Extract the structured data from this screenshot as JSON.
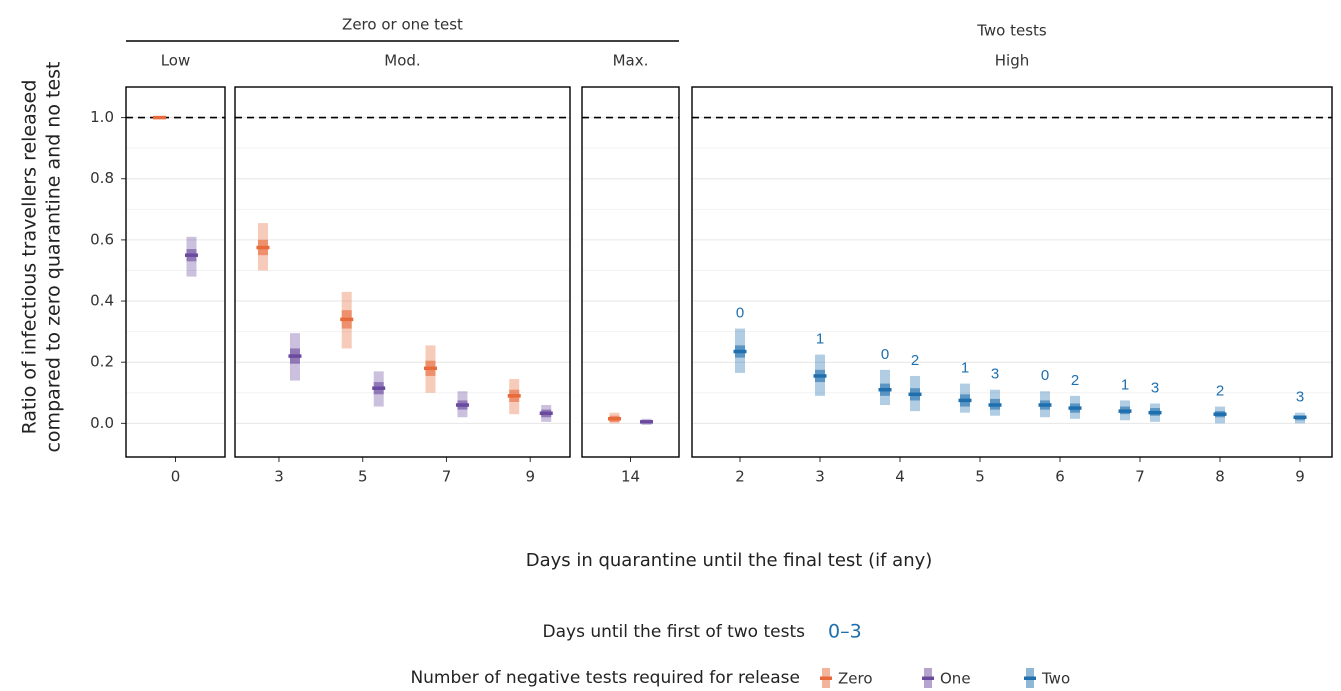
{
  "y_label": [
    "Ratio of infectious travellers released",
    "compared to zero quarantine and no test"
  ],
  "x_label": "Days in quarantine until the final test (if any)",
  "group_titles": [
    "Zero or one test",
    "Two tests"
  ],
  "ylim": [
    -0.11,
    1.1
  ],
  "yticks": [
    {
      "value": 0,
      "label": "0.0"
    },
    0.2,
    0.4,
    0.6,
    0.8,
    {
      "value": 1,
      "label": "1.0"
    }
  ],
  "yminor": [
    0.1,
    0.3,
    0.5,
    0.7,
    0.9
  ],
  "hline": 1,
  "first_test_legend": {
    "title": "Days until the first of two tests",
    "label": "0–3",
    "color": "#1f6fae"
  },
  "legend": {
    "title": "Number of negative tests required for release",
    "entries": [
      {
        "name": "Zero",
        "color": "#e8693a"
      },
      {
        "name": "One",
        "color": "#6a4a9e"
      },
      {
        "name": "Two",
        "color": "#1f6fae"
      }
    ]
  },
  "chart_data": [
    {
      "type": "interval",
      "title": "Low",
      "xlim": [
        -0.6,
        0.6
      ],
      "xticks": [
        0
      ],
      "series": [
        {
          "color": "#e8693a",
          "x": [
            0
          ],
          "values": [
            1.0
          ],
          "low50": [
            0.998
          ],
          "high50": [
            1.0
          ],
          "low95": [
            0.995
          ],
          "high95": [
            1.0
          ]
        },
        {
          "color": "#6a4a9e",
          "x": [
            0
          ],
          "values": [
            0.55
          ],
          "low50": [
            0.53
          ],
          "high50": [
            0.57
          ],
          "low95": [
            0.48
          ],
          "high95": [
            0.61
          ]
        }
      ]
    },
    {
      "type": "interval",
      "title": "Mod.",
      "xlim": [
        1.95,
        9.95
      ],
      "xticks": [
        3,
        5,
        7,
        9
      ],
      "series": [
        {
          "color": "#e8693a",
          "x": [
            3,
            5,
            7,
            9
          ],
          "values": [
            0.575,
            0.34,
            0.18,
            0.09
          ],
          "low50": [
            0.55,
            0.31,
            0.155,
            0.07
          ],
          "high50": [
            0.6,
            0.37,
            0.205,
            0.11
          ],
          "low95": [
            0.5,
            0.245,
            0.1,
            0.03
          ],
          "high95": [
            0.655,
            0.43,
            0.255,
            0.145
          ]
        },
        {
          "color": "#6a4a9e",
          "x": [
            3,
            5,
            7,
            9
          ],
          "values": [
            0.22,
            0.115,
            0.06,
            0.033
          ],
          "low50": [
            0.195,
            0.095,
            0.045,
            0.02
          ],
          "high50": [
            0.245,
            0.135,
            0.075,
            0.045
          ],
          "low95": [
            0.14,
            0.055,
            0.02,
            0.005
          ],
          "high95": [
            0.295,
            0.17,
            0.105,
            0.06
          ]
        }
      ]
    },
    {
      "type": "interval",
      "title": "Max.",
      "xlim": [
        13.4,
        14.6
      ],
      "xticks": [
        14
      ],
      "series": [
        {
          "color": "#e8693a",
          "x": [
            14
          ],
          "values": [
            0.015
          ],
          "low50": [
            0.005
          ],
          "high50": [
            0.025
          ],
          "low95": [
            0.0
          ],
          "high95": [
            0.035
          ]
        },
        {
          "color": "#6a4a9e",
          "x": [
            14
          ],
          "values": [
            0.005
          ],
          "low50": [
            0.0
          ],
          "high50": [
            0.01
          ],
          "low95": [
            -0.005
          ],
          "high95": [
            0.015
          ]
        }
      ]
    },
    {
      "type": "interval",
      "title": "High",
      "xlim": [
        1.4,
        9.4
      ],
      "xticks": [
        2,
        3,
        4,
        5,
        6,
        7,
        8,
        9
      ],
      "series": [
        {
          "color": "#1f6fae",
          "x": [
            2,
            3,
            4,
            4,
            5,
            5,
            6,
            6,
            7,
            7,
            8,
            9
          ],
          "values": [
            0.235,
            0.155,
            0.11,
            0.095,
            0.075,
            0.06,
            0.06,
            0.05,
            0.04,
            0.035,
            0.03,
            0.02
          ],
          "low50": [
            0.215,
            0.135,
            0.09,
            0.075,
            0.055,
            0.045,
            0.045,
            0.035,
            0.03,
            0.025,
            0.02,
            0.01
          ],
          "high50": [
            0.255,
            0.175,
            0.13,
            0.115,
            0.095,
            0.08,
            0.075,
            0.065,
            0.055,
            0.05,
            0.04,
            0.025
          ],
          "low95": [
            0.165,
            0.09,
            0.06,
            0.04,
            0.035,
            0.025,
            0.02,
            0.015,
            0.01,
            0.005,
            0.0,
            0.0
          ],
          "high95": [
            0.31,
            0.225,
            0.175,
            0.155,
            0.13,
            0.11,
            0.105,
            0.09,
            0.075,
            0.065,
            0.055,
            0.035
          ],
          "point_labels": [
            0,
            1,
            0,
            2,
            1,
            3,
            0,
            2,
            1,
            3,
            2,
            3
          ]
        }
      ]
    }
  ]
}
